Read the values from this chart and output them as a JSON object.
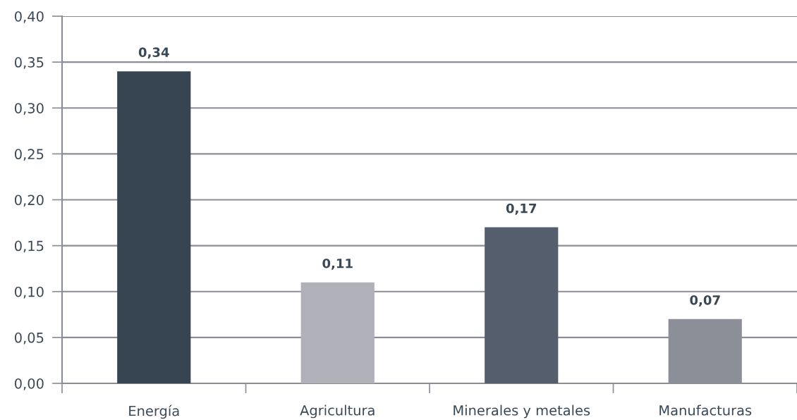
{
  "chart_data": {
    "type": "bar",
    "categories": [
      "Energía",
      "Agricultura",
      "Minerales y metales",
      "Manufacturas"
    ],
    "values": [
      0.34,
      0.11,
      0.17,
      0.07
    ],
    "colors": [
      "#374553",
      "#b0b0b9",
      "#555e6c",
      "#8c8f98"
    ],
    "value_labels": [
      "0,34",
      "0,11",
      "0,17",
      "0,07"
    ],
    "ylim": [
      0,
      0.4
    ],
    "yticks": [
      {
        "value": 0,
        "label": "0,00"
      },
      {
        "value": 0.05,
        "label": "0,05"
      },
      {
        "value": 0.1,
        "label": "0,10"
      },
      {
        "value": 0.15,
        "label": "0,15"
      },
      {
        "value": 0.2,
        "label": "0,20"
      },
      {
        "value": 0.25,
        "label": "0,25"
      },
      {
        "value": 0.3,
        "label": "0,30"
      },
      {
        "value": 0.35,
        "label": "0,35"
      },
      {
        "value": 0.4,
        "label": "0,40"
      }
    ],
    "grid": "y"
  }
}
